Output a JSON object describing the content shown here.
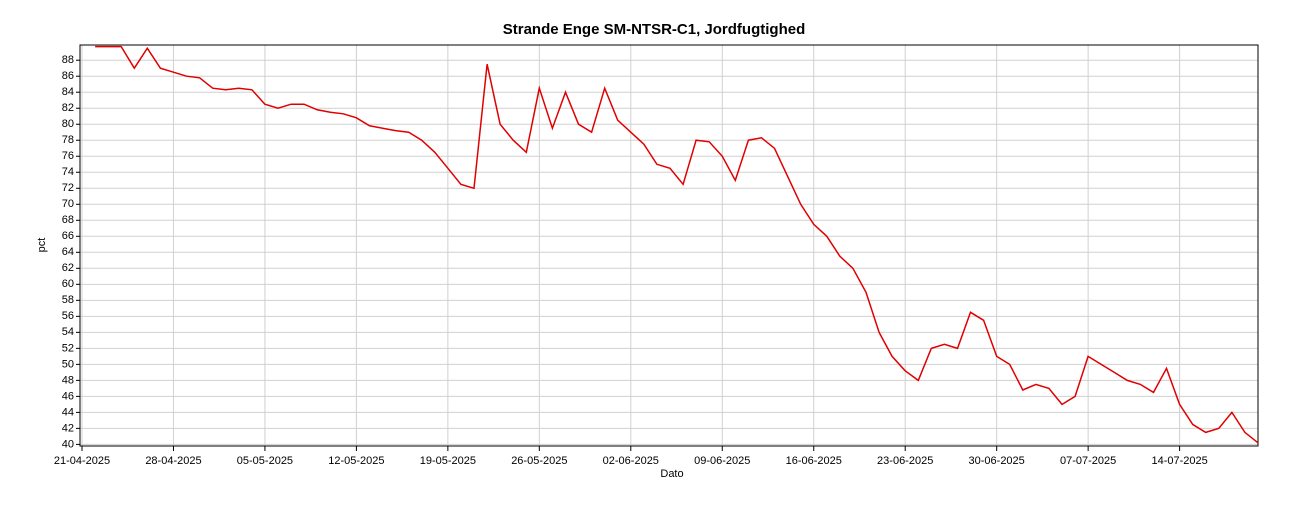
{
  "chart_data": {
    "type": "line",
    "title": "Strande Enge SM-NTSR-C1, Jordfugtighed",
    "xlabel": "Dato",
    "ylabel": "pct",
    "color": "#e00000",
    "grid": true,
    "x": [
      "22-04-2025",
      "23-04-2025",
      "24-04-2025",
      "25-04-2025",
      "26-04-2025",
      "27-04-2025",
      "28-04-2025",
      "29-04-2025",
      "30-04-2025",
      "01-05-2025",
      "02-05-2025",
      "03-05-2025",
      "04-05-2025",
      "05-05-2025",
      "06-05-2025",
      "07-05-2025",
      "08-05-2025",
      "09-05-2025",
      "10-05-2025",
      "11-05-2025",
      "12-05-2025",
      "13-05-2025",
      "14-05-2025",
      "15-05-2025",
      "16-05-2025",
      "17-05-2025",
      "18-05-2025",
      "19-05-2025",
      "20-05-2025",
      "21-05-2025",
      "22-05-2025",
      "23-05-2025",
      "24-05-2025",
      "25-05-2025",
      "26-05-2025",
      "27-05-2025",
      "28-05-2025",
      "29-05-2025",
      "30-05-2025",
      "31-05-2025",
      "01-06-2025",
      "02-06-2025",
      "03-06-2025",
      "04-06-2025",
      "05-06-2025",
      "06-06-2025",
      "07-06-2025",
      "08-06-2025",
      "09-06-2025",
      "10-06-2025",
      "11-06-2025",
      "12-06-2025",
      "13-06-2025",
      "14-06-2025",
      "15-06-2025",
      "16-06-2025",
      "17-06-2025",
      "18-06-2025",
      "19-06-2025",
      "20-06-2025",
      "21-06-2025",
      "22-06-2025",
      "23-06-2025",
      "24-06-2025",
      "25-06-2025",
      "26-06-2025",
      "27-06-2025",
      "28-06-2025",
      "29-06-2025",
      "30-06-2025",
      "01-07-2025",
      "02-07-2025",
      "03-07-2025",
      "04-07-2025",
      "05-07-2025",
      "06-07-2025",
      "07-07-2025",
      "08-07-2025",
      "09-07-2025",
      "10-07-2025",
      "11-07-2025",
      "12-07-2025",
      "13-07-2025",
      "14-07-2025",
      "15-07-2025",
      "16-07-2025",
      "17-07-2025",
      "18-07-2025",
      "19-07-2025",
      "20-07-2025"
    ],
    "values": [
      89.7,
      89.7,
      89.7,
      87,
      89.5,
      87,
      86.5,
      86,
      85.8,
      84.5,
      84.3,
      84.5,
      84.3,
      82.5,
      82,
      82.5,
      82.5,
      81.8,
      81.5,
      81.3,
      80.8,
      79.8,
      79.5,
      79.2,
      79,
      78,
      76.5,
      74.5,
      72.5,
      72,
      87.5,
      80,
      78,
      76.5,
      84.5,
      79.5,
      84,
      80,
      79,
      84.5,
      80.5,
      79,
      77.5,
      75,
      74.5,
      72.5,
      78,
      77.8,
      76,
      73,
      78,
      78.3,
      77,
      73.5,
      70,
      67.5,
      66,
      63.5,
      62,
      59,
      54,
      51,
      49.2,
      48,
      52,
      52.5,
      52,
      56.5,
      55.5,
      51,
      50,
      46.8,
      47.5,
      47,
      45,
      46,
      51,
      50,
      49,
      48,
      47.5,
      46.5,
      49.5,
      45,
      42.5,
      41.5,
      42,
      44,
      41.5,
      40.2
    ],
    "xlim": [
      "21-04-2025",
      "20-07-2025"
    ],
    "xticks": [
      "21-04-2025",
      "28-04-2025",
      "05-05-2025",
      "12-05-2025",
      "19-05-2025",
      "26-05-2025",
      "02-06-2025",
      "09-06-2025",
      "16-06-2025",
      "23-06-2025",
      "30-06-2025",
      "07-07-2025",
      "14-07-2025"
    ],
    "ylim": [
      39.8,
      89.9
    ],
    "yticks": [
      40,
      42,
      44,
      46,
      48,
      50,
      52,
      54,
      56,
      58,
      60,
      62,
      64,
      66,
      68,
      70,
      72,
      74,
      76,
      78,
      80,
      82,
      84,
      86,
      88
    ]
  }
}
